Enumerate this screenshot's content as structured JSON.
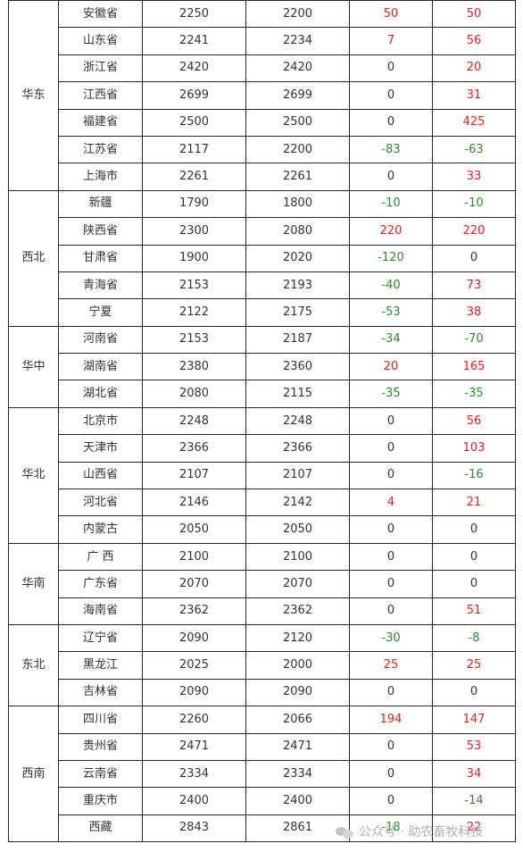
{
  "colors": {
    "positive": "#e02020",
    "negative": "#2e8b2e",
    "zero": "#333333",
    "border": "#262626"
  },
  "watermark": {
    "text": "公众号 · 助农畜牧科技",
    "icon": "wechat-icon"
  },
  "groups": [
    {
      "region": "华东",
      "rows": [
        {
          "province": "安徽省",
          "a": "2250",
          "b": "2200",
          "c": "50",
          "d": "50"
        },
        {
          "province": "山东省",
          "a": "2241",
          "b": "2234",
          "c": "7",
          "d": "56"
        },
        {
          "province": "浙江省",
          "a": "2420",
          "b": "2420",
          "c": "0",
          "d": "20"
        },
        {
          "province": "江西省",
          "a": "2699",
          "b": "2699",
          "c": "0",
          "d": "31"
        },
        {
          "province": "福建省",
          "a": "2500",
          "b": "2500",
          "c": "0",
          "d": "425"
        },
        {
          "province": "江苏省",
          "a": "2117",
          "b": "2200",
          "c": "-83",
          "d": "-63"
        },
        {
          "province": "上海市",
          "a": "2261",
          "b": "2261",
          "c": "0",
          "d": "33"
        }
      ]
    },
    {
      "region": "西北",
      "rows": [
        {
          "province": "新疆",
          "a": "1790",
          "b": "1800",
          "c": "-10",
          "d": "-10"
        },
        {
          "province": "陕西省",
          "a": "2300",
          "b": "2080",
          "c": "220",
          "d": "220"
        },
        {
          "province": "甘肃省",
          "a": "1900",
          "b": "2020",
          "c": "-120",
          "d": "0"
        },
        {
          "province": "青海省",
          "a": "2153",
          "b": "2193",
          "c": "-40",
          "d": "73"
        },
        {
          "province": "宁夏",
          "a": "2122",
          "b": "2175",
          "c": "-53",
          "d": "38"
        }
      ]
    },
    {
      "region": "华中",
      "rows": [
        {
          "province": "河南省",
          "a": "2153",
          "b": "2187",
          "c": "-34",
          "d": "-70"
        },
        {
          "province": "湖南省",
          "a": "2380",
          "b": "2360",
          "c": "20",
          "d": "165"
        },
        {
          "province": "湖北省",
          "a": "2080",
          "b": "2115",
          "c": "-35",
          "d": "-35"
        }
      ]
    },
    {
      "region": "华北",
      "rows": [
        {
          "province": "北京市",
          "a": "2248",
          "b": "2248",
          "c": "0",
          "d": "56"
        },
        {
          "province": "天津市",
          "a": "2366",
          "b": "2366",
          "c": "0",
          "d": "103"
        },
        {
          "province": "山西省",
          "a": "2107",
          "b": "2107",
          "c": "0",
          "d": "-16"
        },
        {
          "province": "河北省",
          "a": "2146",
          "b": "2142",
          "c": "4",
          "d": "21"
        },
        {
          "province": "内蒙古",
          "a": "2050",
          "b": "2050",
          "c": "0",
          "d": "0"
        }
      ]
    },
    {
      "region": "华南",
      "rows": [
        {
          "province": "广 西",
          "a": "2100",
          "b": "2100",
          "c": "0",
          "d": "0"
        },
        {
          "province": "广东省",
          "a": "2070",
          "b": "2070",
          "c": "0",
          "d": "0"
        },
        {
          "province": "海南省",
          "a": "2362",
          "b": "2362",
          "c": "0",
          "d": "51"
        }
      ]
    },
    {
      "region": "东北",
      "rows": [
        {
          "province": "辽宁省",
          "a": "2090",
          "b": "2120",
          "c": "-30",
          "d": "-8"
        },
        {
          "province": "黑龙江",
          "a": "2025",
          "b": "2000",
          "c": "25",
          "d": "25"
        },
        {
          "province": "吉林省",
          "a": "2090",
          "b": "2090",
          "c": "0",
          "d": "0"
        }
      ]
    },
    {
      "region": "西南",
      "rows": [
        {
          "province": "四川省",
          "a": "2260",
          "b": "2066",
          "c": "194",
          "d": "147"
        },
        {
          "province": "贵州省",
          "a": "2471",
          "b": "2471",
          "c": "0",
          "d": "53"
        },
        {
          "province": "云南省",
          "a": "2334",
          "b": "2334",
          "c": "0",
          "d": "34"
        },
        {
          "province": "重庆市",
          "a": "2400",
          "b": "2400",
          "c": "0",
          "d": "-14"
        },
        {
          "province": "西藏",
          "a": "2843",
          "b": "2861",
          "c": "-18",
          "d": "22"
        }
      ]
    }
  ]
}
